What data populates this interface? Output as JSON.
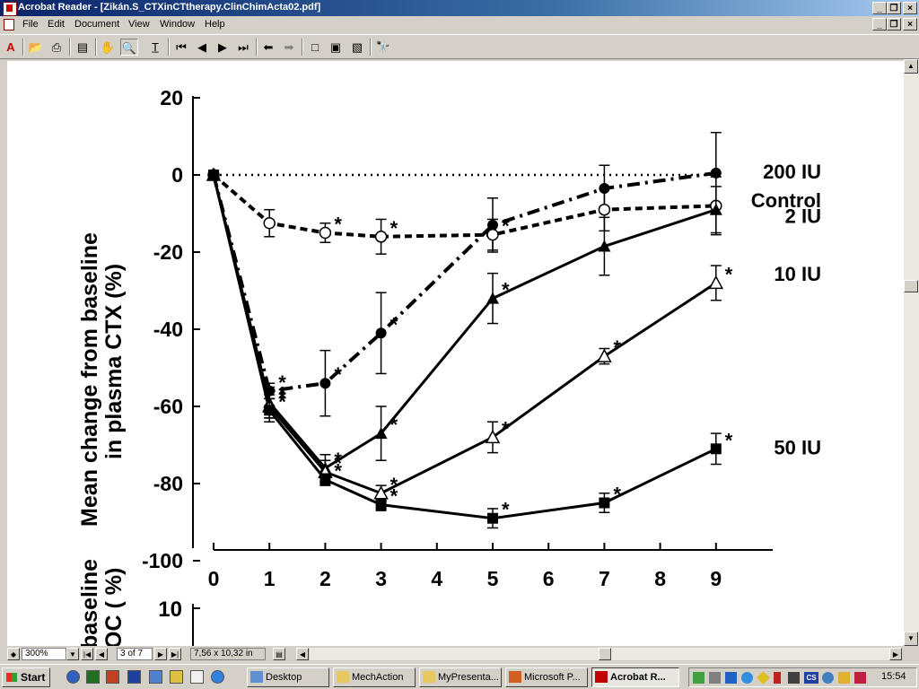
{
  "window": {
    "title": "Acrobat Reader - [Zikán.S_CTXinCTtherapy.ClinChimActa02.pdf]"
  },
  "menu": [
    "File",
    "Edit",
    "Document",
    "View",
    "Window",
    "Help"
  ],
  "toolbar": {
    "icons": [
      "acrobat-logo-icon",
      "open-icon",
      "print-icon",
      "navigation-pane-icon",
      "hand-tool-icon",
      "zoom-tool-icon",
      "text-select-icon",
      "first-page-icon",
      "previous-page-icon",
      "next-page-icon",
      "last-page-icon",
      "go-back-icon",
      "go-forward-icon",
      "actual-size-icon",
      "fit-page-icon",
      "fit-width-icon",
      "find-icon"
    ]
  },
  "chart_data": {
    "type": "line",
    "ylabel_line1": "Mean change from baseline",
    "ylabel_line2": "in plasma CTX (%)",
    "x_ticks": [
      0,
      1,
      2,
      3,
      4,
      5,
      6,
      7,
      8,
      9
    ],
    "y_ticks": [
      20,
      0,
      -20,
      -40,
      -60,
      -80,
      -100
    ],
    "xlim": [
      0,
      10
    ],
    "ylim": [
      -100,
      20
    ],
    "series": [
      {
        "name": "200 IU",
        "marker": "filled-circle",
        "line": "dash-dot",
        "x": [
          0,
          1,
          2,
          3,
          5,
          7,
          9
        ],
        "y": [
          0,
          -56,
          -54,
          -41,
          -13,
          -3.5,
          0.5
        ],
        "err": [
          0,
          2,
          8.5,
          10.5,
          7,
          6,
          10.5
        ],
        "stars": [
          false,
          true,
          true,
          true,
          false,
          false,
          false
        ]
      },
      {
        "name": "Control",
        "marker": "dotted-line",
        "line": "dotted",
        "x": [
          0,
          9
        ],
        "y": [
          0,
          0
        ]
      },
      {
        "name": "2 IU",
        "marker": "open-circle",
        "line": "dashed",
        "x": [
          0,
          1,
          2,
          3,
          5,
          7,
          9
        ],
        "y": [
          0,
          -12.5,
          -15,
          -16,
          -15.5,
          -9,
          -8
        ],
        "err": [
          0,
          3.5,
          2.5,
          4.5,
          4,
          5.5,
          7.5
        ],
        "stars": [
          false,
          false,
          true,
          true,
          true,
          false,
          false
        ]
      },
      {
        "name": "10 IU",
        "marker": "filled-triangle",
        "line": "solid",
        "x": [
          0,
          1,
          2,
          3,
          5,
          7,
          9
        ],
        "y": [
          0,
          -59,
          -76,
          -67,
          -32,
          -18.5,
          -9
        ],
        "err": [
          0,
          4,
          3.5,
          7,
          6.5,
          7.5,
          6
        ],
        "stars": [
          false,
          true,
          true,
          true,
          true,
          false,
          false
        ]
      },
      {
        "name": "50 IU",
        "marker": "open-triangle",
        "line": "solid",
        "x": [
          0,
          1,
          2,
          3,
          5,
          7,
          9
        ],
        "y": [
          0,
          -60,
          -77,
          -82.5,
          -68,
          -47,
          -28
        ],
        "err": [
          0,
          3,
          3,
          2,
          4,
          2,
          4.5
        ],
        "stars": [
          false,
          true,
          true,
          true,
          true,
          true,
          true
        ]
      },
      {
        "name": "",
        "marker": "filled-square",
        "line": "solid",
        "x": [
          0,
          1,
          2,
          3,
          5,
          7,
          9
        ],
        "y": [
          0,
          -61,
          -79,
          -85.5,
          -89,
          -85,
          -71
        ],
        "err": [
          0,
          3,
          1.5,
          1.5,
          2.5,
          2.5,
          4
        ],
        "stars": [
          false,
          true,
          true,
          true,
          true,
          true,
          true
        ]
      }
    ],
    "labels": [
      "200 IU",
      "Control",
      "2 IU",
      "10 IU",
      "50 IU"
    ],
    "lower_panel": {
      "ylabel_line1": "baseline",
      "ylabel_line2": "OC ( %)",
      "first_tick": "10"
    }
  },
  "navbar": {
    "zoom": "300%",
    "page": "3 of 7",
    "size": "7,56 x 10,32 in"
  },
  "taskbar": {
    "start": "Start",
    "tasks": [
      "Desktop",
      "MechAction",
      "MyPresenta...",
      "Microsoft P...",
      "Acrobat R..."
    ],
    "clock": "15:54",
    "tray_text": "CS"
  }
}
